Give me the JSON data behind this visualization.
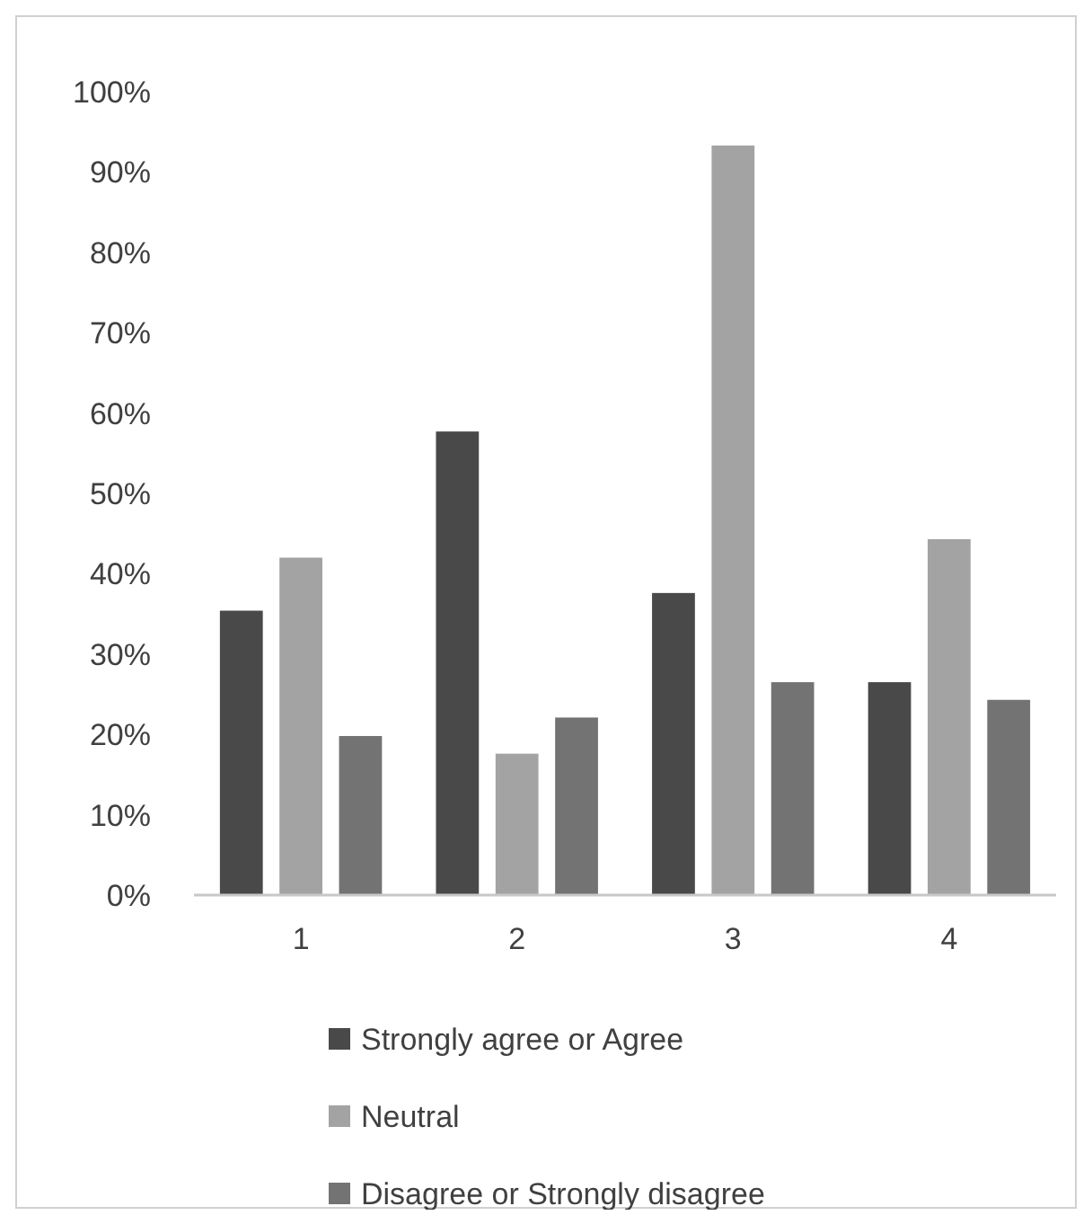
{
  "chart_data": {
    "type": "bar",
    "categories": [
      "1",
      "2",
      "3",
      "4"
    ],
    "series": [
      {
        "name": "Strongly agree or Agree",
        "color": "#494949",
        "values": [
          35.4,
          57.7,
          37.6,
          26.5
        ]
      },
      {
        "name": "Neutral",
        "color": "#a3a3a3",
        "values": [
          42,
          17.6,
          93.3,
          44.3
        ]
      },
      {
        "name": "Disagree or Strongly disagree",
        "color": "#737373",
        "values": [
          19.8,
          22.1,
          26.5,
          24.3
        ]
      }
    ],
    "ylim": [
      0,
      100
    ],
    "yticks": [
      {
        "value": 0,
        "label": "0%"
      },
      {
        "value": 10,
        "label": "10%"
      },
      {
        "value": 20,
        "label": "20%"
      },
      {
        "value": 30,
        "label": "30%"
      },
      {
        "value": 40,
        "label": "40%"
      },
      {
        "value": 50,
        "label": "50%"
      },
      {
        "value": 60,
        "label": "60%"
      },
      {
        "value": 70,
        "label": "70%"
      },
      {
        "value": 80,
        "label": "80%"
      },
      {
        "value": 90,
        "label": "90%"
      },
      {
        "value": 100,
        "label": "100%"
      }
    ],
    "grid": false,
    "legend": "bottom"
  }
}
